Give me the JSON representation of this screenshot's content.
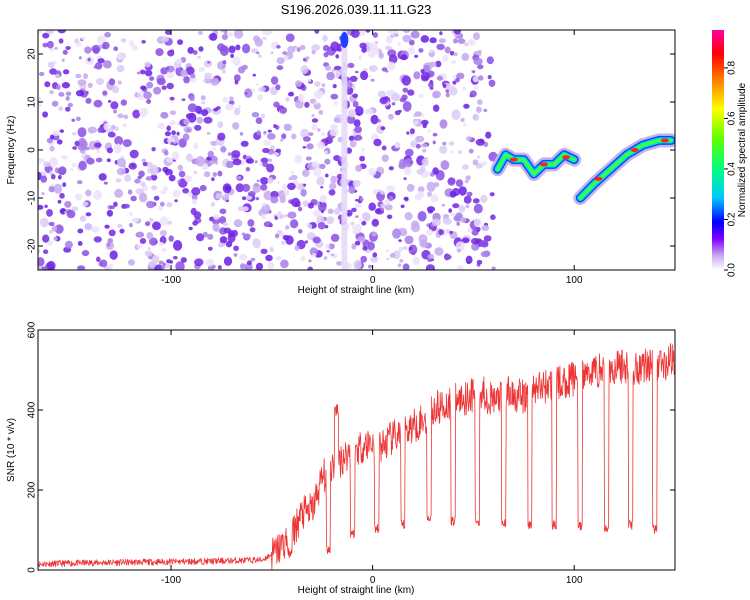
{
  "title": "S196.2026.039.11.11.G23",
  "chart_data": [
    {
      "type": "heatmap",
      "title": "S196.2026.039.11.11.G23",
      "xlabel": "Height of straight line (km)",
      "ylabel": "Frequency (Hz)",
      "xlim": [
        -166,
        150
      ],
      "ylim": [
        -25,
        25
      ],
      "xticks": [
        -100,
        0,
        100
      ],
      "yticks": [
        -20,
        -10,
        0,
        10,
        20
      ],
      "noise_region_x": [
        -166,
        60
      ],
      "signal_track": [
        {
          "x": 62,
          "y": -4
        },
        {
          "x": 66,
          "y": -1
        },
        {
          "x": 70,
          "y": -2
        },
        {
          "x": 75,
          "y": -2
        },
        {
          "x": 80,
          "y": -5
        },
        {
          "x": 85,
          "y": -3
        },
        {
          "x": 90,
          "y": -3
        },
        {
          "x": 95,
          "y": -1
        },
        {
          "x": 100,
          "y": -2
        },
        {
          "x": 103,
          "y": -10
        },
        {
          "x": 110,
          "y": -7
        },
        {
          "x": 118,
          "y": -4
        },
        {
          "x": 126,
          "y": -1
        },
        {
          "x": 134,
          "y": 1
        },
        {
          "x": 142,
          "y": 2
        },
        {
          "x": 148,
          "y": 2
        }
      ],
      "colorbar": {
        "label": "Normalized spectral amplitude",
        "ticks": [
          "0.0",
          "0.2",
          "0.4",
          "0.6",
          "0.8"
        ],
        "tick_values": [
          0.0,
          0.2,
          0.4,
          0.6,
          0.8
        ],
        "range": [
          0,
          0.95
        ],
        "colors": [
          "#ffffff",
          "#c8a8f0",
          "#8000ff",
          "#0000ff",
          "#00c8ff",
          "#00ff80",
          "#60ff00",
          "#ffff00",
          "#ff8000",
          "#ff0000",
          "#ff00a0"
        ]
      }
    },
    {
      "type": "line",
      "xlabel": "Height of straight line (km)",
      "ylabel": "SNR (10 * v/v)",
      "xlim": [
        -166,
        150
      ],
      "ylim": [
        0,
        600
      ],
      "xticks": [
        -100,
        0,
        100
      ],
      "yticks": [
        0,
        200,
        400,
        600
      ],
      "color": "#ee3333",
      "series": [
        {
          "name": "SNR",
          "x": [
            -166,
            -140,
            -110,
            -80,
            -55,
            -48,
            -40,
            -35,
            -30,
            -25,
            -20,
            -15,
            -10,
            -5,
            0,
            5,
            10,
            15,
            20,
            25,
            30,
            35,
            40,
            45,
            50,
            55,
            60,
            65,
            70,
            75,
            80,
            85,
            90,
            95,
            100,
            105,
            110,
            115,
            120,
            125,
            130,
            135,
            140,
            145,
            150
          ],
          "y": [
            15,
            18,
            20,
            22,
            25,
            45,
            90,
            140,
            150,
            230,
            260,
            280,
            300,
            310,
            320,
            310,
            330,
            345,
            360,
            375,
            400,
            410,
            420,
            430,
            440,
            445,
            420,
            440,
            440,
            430,
            450,
            460,
            465,
            470,
            480,
            490,
            500,
            500,
            505,
            510,
            505,
            515,
            520,
            515,
            530
          ],
          "dropouts": [
            {
              "x": -41,
              "y": 30
            },
            {
              "x": -22,
              "y": 40
            },
            {
              "x": -10,
              "y": 80
            },
            {
              "x": 2,
              "y": 90
            },
            {
              "x": 15,
              "y": 100
            },
            {
              "x": 28,
              "y": 120
            },
            {
              "x": 40,
              "y": 110
            },
            {
              "x": 52,
              "y": 110
            },
            {
              "x": 65,
              "y": 105
            },
            {
              "x": 78,
              "y": 100
            },
            {
              "x": 90,
              "y": 100
            },
            {
              "x": 103,
              "y": 95
            },
            {
              "x": 116,
              "y": 95
            },
            {
              "x": 128,
              "y": 100
            },
            {
              "x": 140,
              "y": 90
            }
          ]
        }
      ]
    }
  ]
}
